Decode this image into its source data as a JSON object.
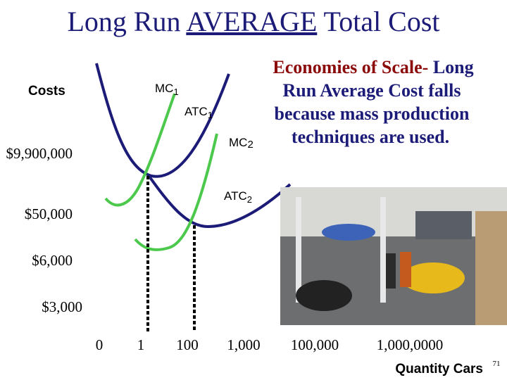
{
  "header": {
    "title_before": "Long Run ",
    "title_emphasis": "AVERAGE",
    "title_after": " Total Cost"
  },
  "y_axis": {
    "label": "Costs",
    "levels": [
      "$9,900,000",
      "$50,000",
      "$6,000",
      "$3,000"
    ]
  },
  "x_axis": {
    "label": "Quantity Cars",
    "levels": [
      "0",
      "1",
      "100",
      "1,000",
      "100,000",
      "1,000,0000"
    ]
  },
  "curves": [
    {
      "text": "MC",
      "sub": "1"
    },
    {
      "text": "ATC",
      "sub": "1"
    },
    {
      "text": "MC",
      "sub": "2"
    },
    {
      "text": "ATC",
      "sub": "2"
    }
  ],
  "note": {
    "lead": "Economies of Scale-",
    "lines": [
      " Long",
      "Run Average Cost falls",
      "because mass production",
      "techniques are used."
    ]
  },
  "page_number": "71"
}
